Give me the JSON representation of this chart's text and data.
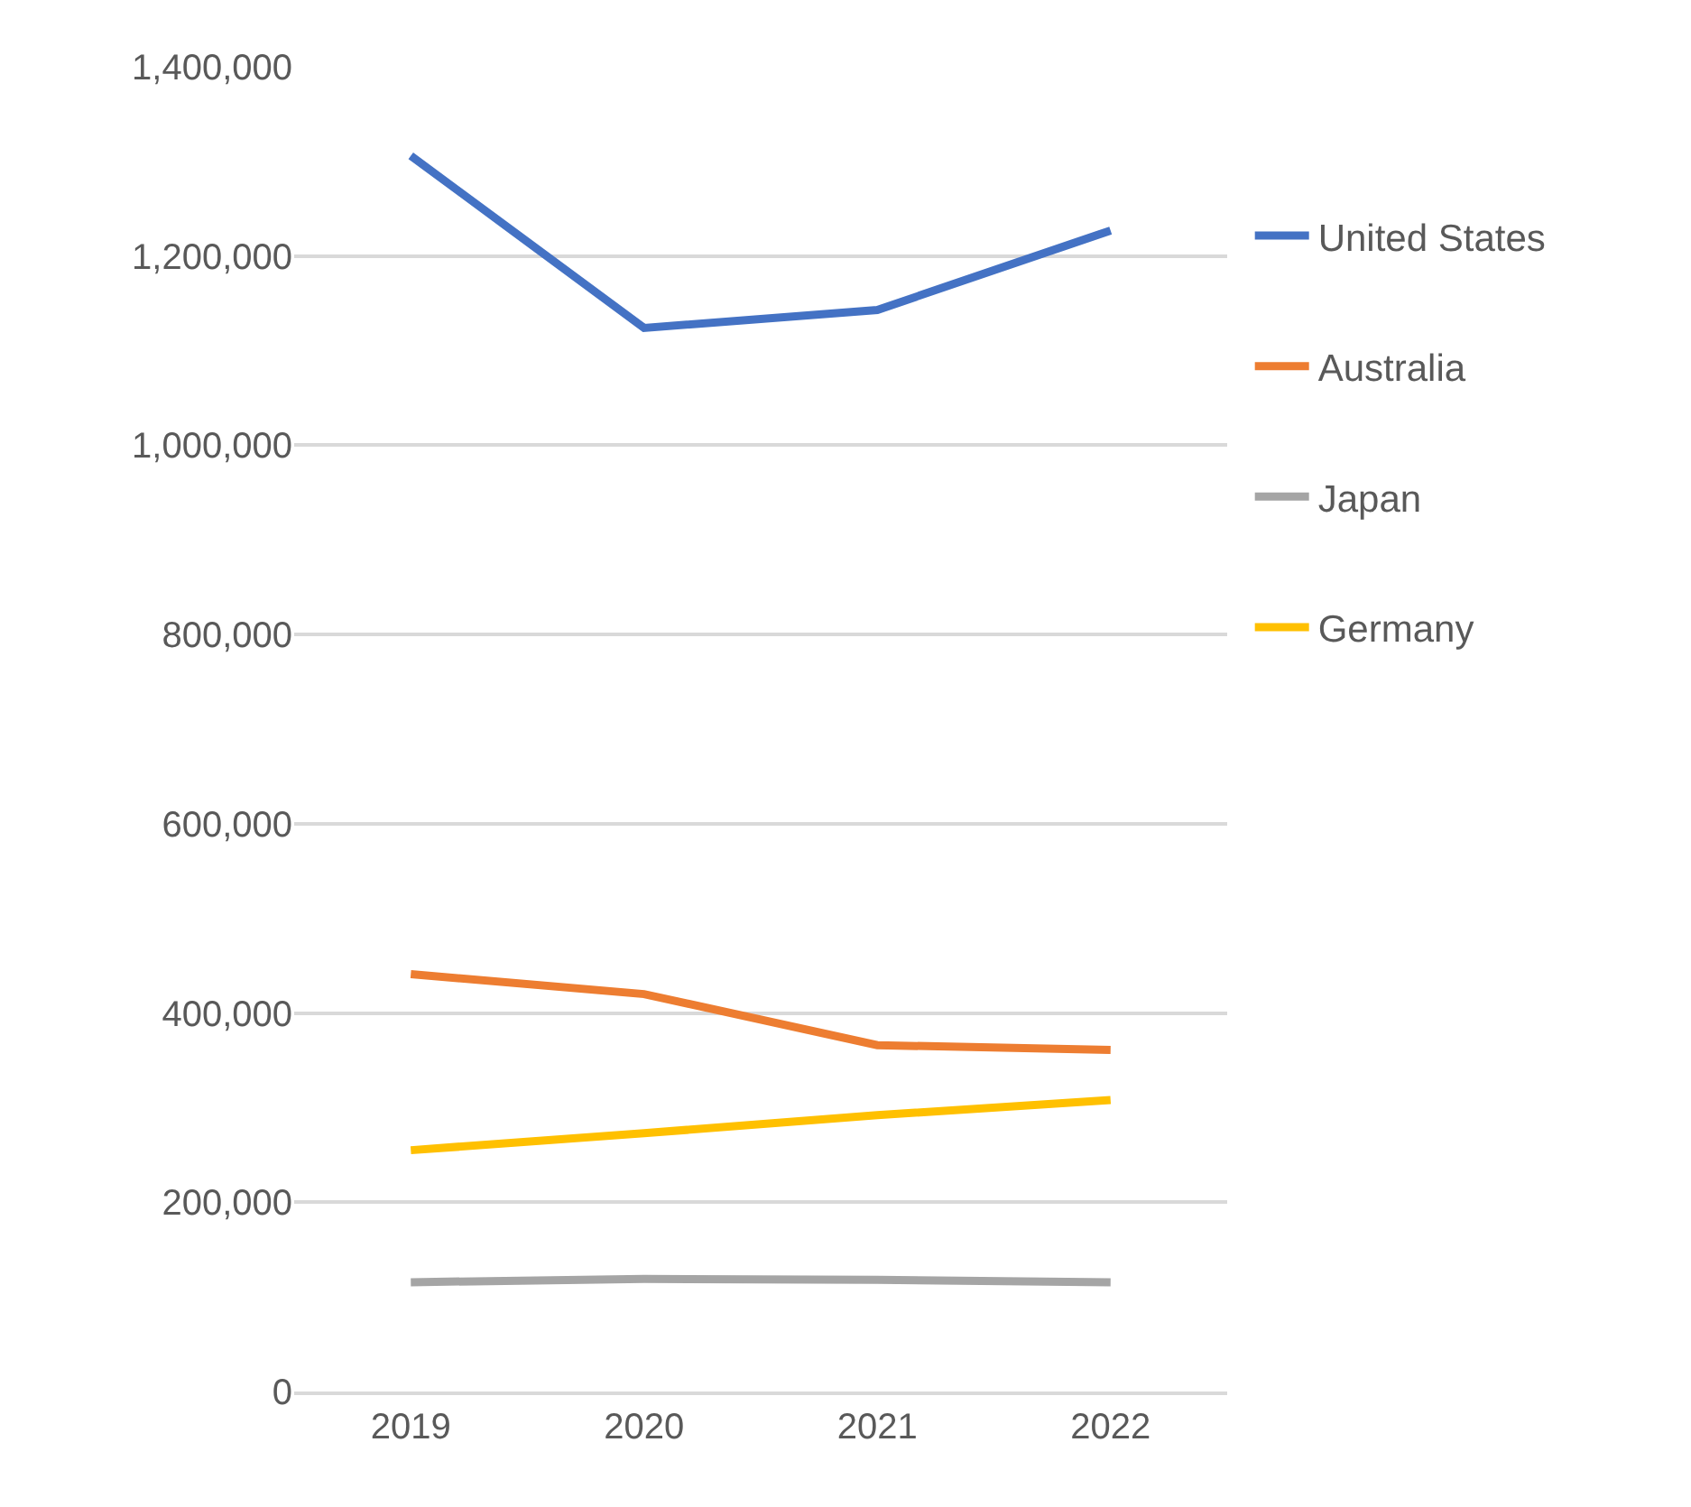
{
  "chart_data": {
    "type": "line",
    "categories": [
      "2019",
      "2020",
      "2021",
      "2022"
    ],
    "series": [
      {
        "name": "United States",
        "color": "#4472c4",
        "values": [
          1306000,
          1124000,
          1143000,
          1227000
        ]
      },
      {
        "name": "Australia",
        "color": "#ed7d31",
        "values": [
          441000,
          420000,
          366000,
          361000
        ]
      },
      {
        "name": "Japan",
        "color": "#a5a5a5",
        "values": [
          115500,
          119000,
          118000,
          115500
        ]
      },
      {
        "name": "Germany",
        "color": "#ffc000",
        "values": [
          255000,
          273000,
          292000,
          308000
        ]
      }
    ],
    "ylim": [
      0,
      1400000
    ],
    "yticks": [
      {
        "value": 0,
        "label": "0"
      },
      {
        "value": 200000,
        "label": "200,000"
      },
      {
        "value": 400000,
        "label": "400,000"
      },
      {
        "value": 600000,
        "label": "600,000"
      },
      {
        "value": 800000,
        "label": "800,000"
      },
      {
        "value": 1000000,
        "label": "1,000,000"
      },
      {
        "value": 1200000,
        "label": "1,200,000"
      },
      {
        "value": 1400000,
        "label": "1,400,000"
      }
    ],
    "grid": "y",
    "legend": "right",
    "marker": "none",
    "line_style": "solid"
  }
}
